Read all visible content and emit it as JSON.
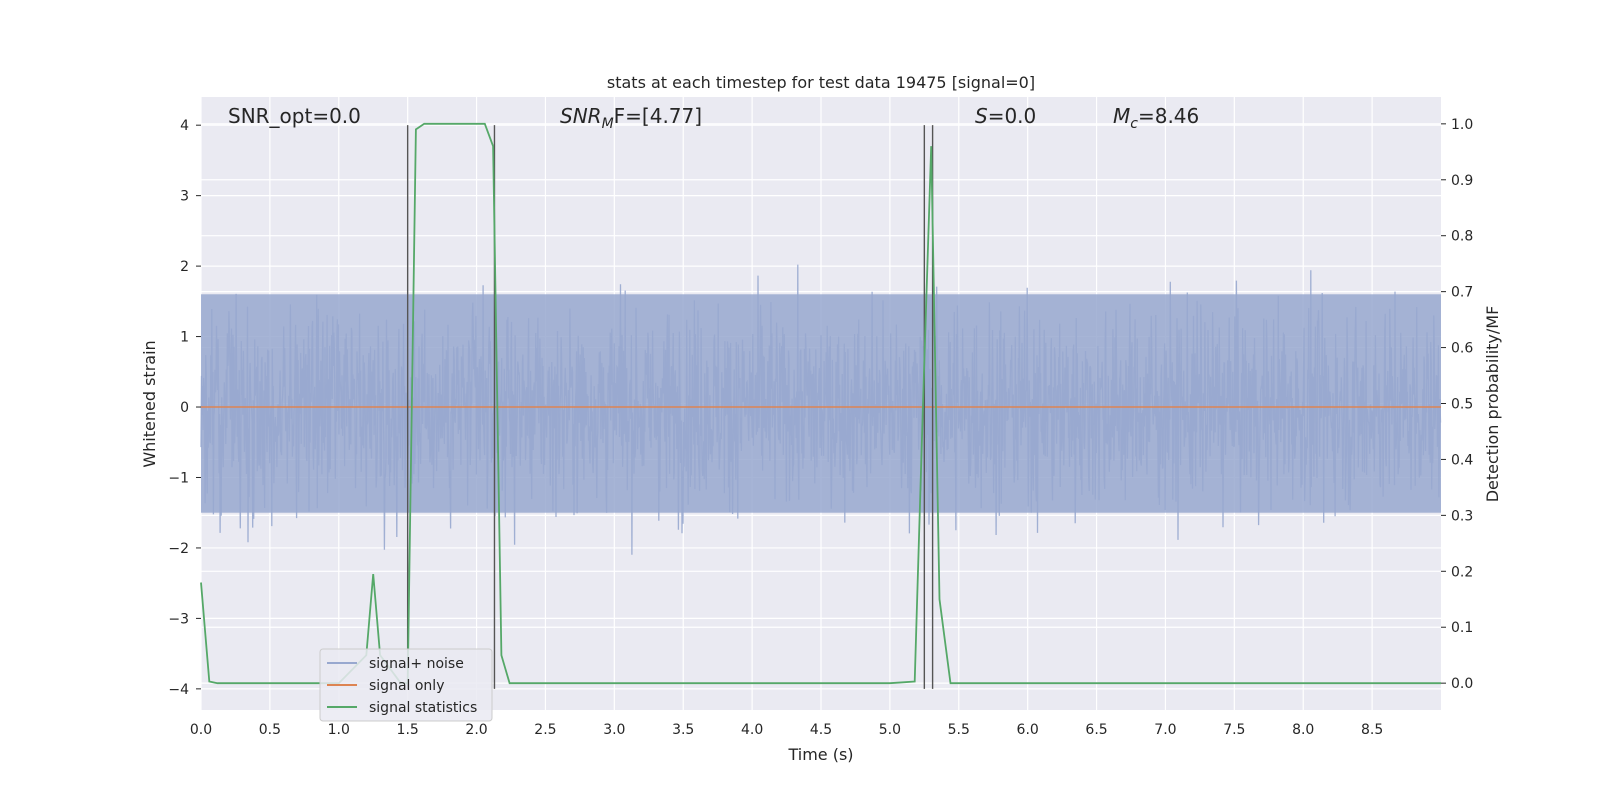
{
  "chart_data": {
    "type": "line",
    "title": "stats at each timestep for test data 19475 [signal=0]",
    "xlabel": "Time (s)",
    "ylabel": "Whitened strain",
    "y2label": "Detection probability/MF",
    "xlim": [
      0.0,
      9.0
    ],
    "ylim": [
      -4.3,
      4.4
    ],
    "y2lim": [
      -0.048,
      1.048
    ],
    "x_ticks": [
      0.0,
      0.5,
      1.0,
      1.5,
      2.0,
      2.5,
      3.0,
      3.5,
      4.0,
      4.5,
      5.0,
      5.5,
      6.0,
      6.5,
      7.0,
      7.5,
      8.0,
      8.5
    ],
    "y_ticks": [
      -4,
      -3,
      -2,
      -1,
      0,
      1,
      2,
      3,
      4
    ],
    "y2_ticks": [
      0.0,
      0.1,
      0.2,
      0.3,
      0.4,
      0.5,
      0.6,
      0.7,
      0.8,
      0.9,
      1.0
    ],
    "grid": true,
    "legend_position": "lower-left",
    "annotations": {
      "snr_opt": "SNR_opt=0.0",
      "snr_mf_sym": "SNR",
      "snr_mf_sub": "M",
      "snr_mf_rest": "F=[4.77]",
      "s_sym": "S",
      "s_rest": "=0.0",
      "mc_sym": "M",
      "mc_sub": "c",
      "mc_rest": "=8.46"
    },
    "series": [
      {
        "name": "signal+ noise",
        "axis": "left",
        "color": "#98A8CF",
        "description_of_shape": "dense whitened noise band, roughly between -2.5 and 2.5 with spikes to about +/-4",
        "envelope": {
          "typical_low": -1.5,
          "typical_high": 1.6,
          "peak_low": -3.9,
          "peak_high": 4.0
        }
      },
      {
        "name": "signal only",
        "axis": "left",
        "color": "#DD8452",
        "x": [
          0.0,
          9.0
        ],
        "y": [
          0.0,
          0.0
        ]
      },
      {
        "name": "signal statistics",
        "axis": "right",
        "color": "#55A868",
        "x": [
          0.0,
          0.06,
          0.12,
          0.5,
          1.0,
          1.2,
          1.25,
          1.3,
          1.45,
          1.5,
          1.56,
          1.62,
          1.8,
          2.06,
          2.12,
          2.18,
          2.24,
          3.0,
          4.0,
          5.0,
          5.18,
          5.24,
          5.3,
          5.36,
          5.44,
          5.5,
          6.0,
          7.0,
          8.0,
          9.0
        ],
        "y": [
          0.18,
          0.003,
          0.0,
          0.0,
          0.0,
          0.05,
          0.195,
          0.05,
          0.0,
          0.0,
          0.99,
          1.0,
          1.0,
          1.0,
          0.96,
          0.05,
          0.0,
          0.0,
          0.0,
          0.0,
          0.003,
          0.5,
          0.96,
          0.15,
          0.0,
          0.0,
          0.0,
          0.0,
          0.0,
          0.0
        ]
      }
    ],
    "vertical_markers_x": [
      1.5,
      2.13,
      5.25,
      5.31
    ]
  }
}
